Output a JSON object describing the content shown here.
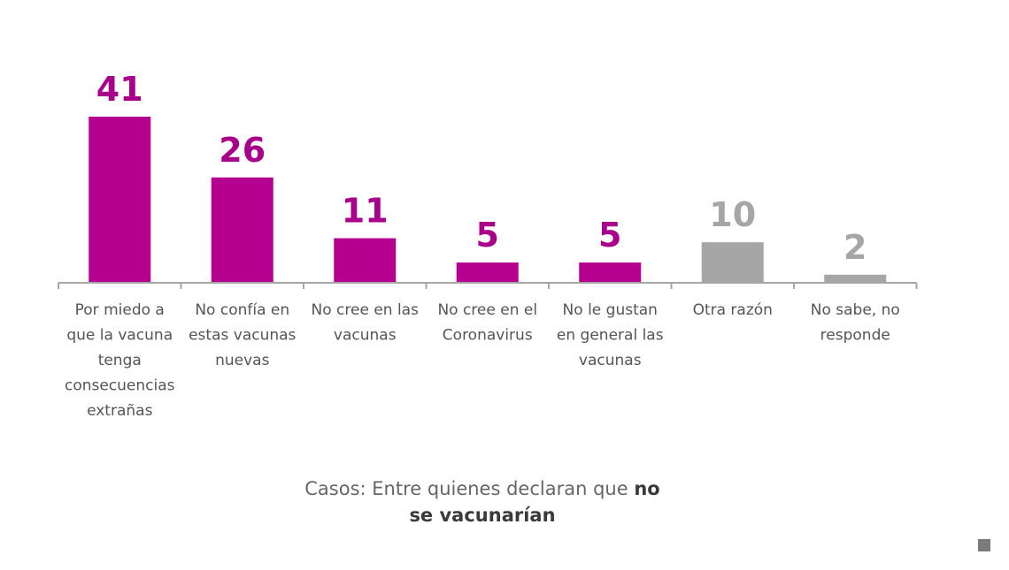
{
  "chart_data": {
    "type": "bar",
    "categories": [
      "Por miedo a que la vacuna tenga consecuencias extrañas",
      "No confía en estas vacunas nuevas",
      "No cree en las vacunas",
      "No cree en el Coronavirus",
      "No le gustan en general las vacunas",
      "Otra razón",
      "No sabe, no responde"
    ],
    "category_lines": [
      [
        "Por miedo a",
        "que la vacuna",
        "tenga",
        "consecuencias",
        "extrañas"
      ],
      [
        "No confía en",
        "estas vacunas",
        "nuevas"
      ],
      [
        "No cree en las",
        "vacunas"
      ],
      [
        "No cree en el",
        "Coronavirus"
      ],
      [
        "No le gustan",
        "en general las",
        "vacunas"
      ],
      [
        "Otra razón"
      ],
      [
        "No sabe, no",
        "responde"
      ]
    ],
    "values": [
      41,
      26,
      11,
      5,
      5,
      10,
      2
    ],
    "bar_colors": [
      "#b5008f",
      "#b5008f",
      "#b5008f",
      "#b5008f",
      "#b5008f",
      "#a6a6a6",
      "#a6a6a6"
    ],
    "label_colors": [
      "#a8008a",
      "#a8008a",
      "#a8008a",
      "#a8008a",
      "#a8008a",
      "#a6a6a6",
      "#a6a6a6"
    ],
    "axis_color": "#a6a6a6",
    "ylim": [
      0,
      41
    ],
    "grid": false,
    "legend": "none",
    "title": "",
    "xlabel": "",
    "ylabel": ""
  },
  "footnote": {
    "prefix": "Casos: Entre quienes declaran que ",
    "bold_part1": "no",
    "bold_part2": "se vacunarían"
  }
}
